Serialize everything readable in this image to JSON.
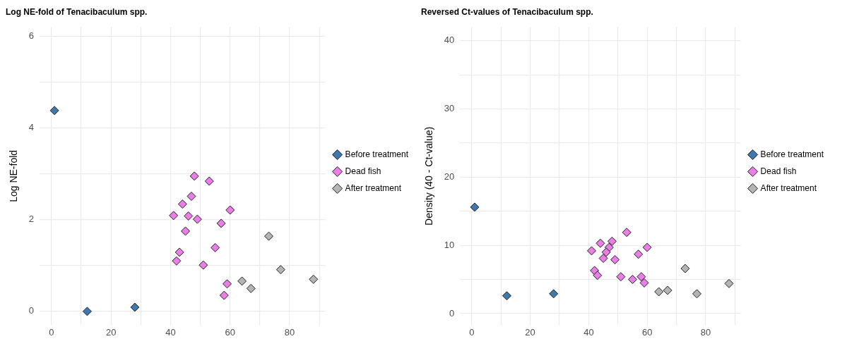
{
  "chart_data": [
    {
      "type": "scatter",
      "title": "Log NE-fold of Tenacibaculum spp.",
      "ylabel": "Log NE-fold",
      "xlim": [
        -4,
        92
      ],
      "xticks": [
        0,
        {
          "value": 10,
          "label": null
        },
        20,
        {
          "value": 30,
          "label": null
        },
        40,
        {
          "value": 50,
          "label": null
        },
        60,
        {
          "value": 70,
          "label": null
        },
        80,
        {
          "value": 90,
          "label": null
        }
      ],
      "ylim": [
        -0.3,
        6.2
      ],
      "yticks": [
        0,
        {
          "value": 1,
          "label": null
        },
        2,
        {
          "value": 3,
          "label": null
        },
        4,
        {
          "value": 5,
          "label": null
        },
        6
      ],
      "grid": true,
      "legend": "right",
      "marker": "diamond",
      "series": [
        {
          "name": "Before treatment",
          "color": "#3e78ad",
          "x": [
            1,
            12,
            28
          ],
          "values": [
            4.38,
            0,
            0.09
          ]
        },
        {
          "name": "Dead fish",
          "color": "#e97fe6",
          "x": [
            48,
            53,
            47,
            44,
            60,
            41,
            46,
            49,
            57,
            45,
            55,
            43,
            42,
            51,
            59,
            58
          ],
          "values": [
            2.95,
            2.84,
            2.51,
            2.34,
            2.21,
            2.09,
            2.08,
            2.01,
            1.92,
            1.75,
            1.39,
            1.29,
            1.1,
            1.01,
            0.6,
            0.35
          ]
        },
        {
          "name": "After treatment",
          "color": "#b4b4b4",
          "x": [
            73,
            77,
            88,
            64,
            67
          ],
          "values": [
            1.64,
            0.91,
            0.7,
            0.66,
            0.5
          ]
        }
      ]
    },
    {
      "type": "scatter",
      "title": "Reversed Ct-values of Tenacibaculum spp.",
      "ylabel": "Density (40 - Ct-value)",
      "xlim": [
        -4,
        92
      ],
      "xticks": [
        0,
        {
          "value": 10,
          "label": null
        },
        20,
        {
          "value": 30,
          "label": null
        },
        40,
        {
          "value": 50,
          "label": null
        },
        60,
        {
          "value": 70,
          "label": null
        },
        80,
        {
          "value": 90,
          "label": null
        }
      ],
      "ylim": [
        -1.7,
        42
      ],
      "yticks": [
        0,
        {
          "value": 5,
          "label": null
        },
        10,
        {
          "value": 15,
          "label": null
        },
        20,
        {
          "value": 25,
          "label": null
        },
        30,
        {
          "value": 35,
          "label": null
        },
        40
      ],
      "grid": true,
      "legend": "right",
      "marker": "diamond",
      "series": [
        {
          "name": "Before treatment",
          "color": "#3e78ad",
          "x": [
            1,
            12,
            28
          ],
          "values": [
            15.6,
            2.6,
            2.9
          ]
        },
        {
          "name": "Dead fish",
          "color": "#e97fe6",
          "x": [
            41,
            44,
            48,
            47,
            46,
            45,
            49,
            53,
            57,
            60,
            42,
            43,
            51,
            55,
            58,
            59
          ],
          "values": [
            9.2,
            10.3,
            10.6,
            9.7,
            9.0,
            8.1,
            7.9,
            11.9,
            8.7,
            9.7,
            6.3,
            5.6,
            5.4,
            5.0,
            5.4,
            4.5
          ]
        },
        {
          "name": "After treatment",
          "color": "#b4b4b4",
          "x": [
            73,
            77,
            88,
            64,
            67
          ],
          "values": [
            6.6,
            2.9,
            4.4,
            3.2,
            3.4
          ]
        }
      ]
    }
  ]
}
